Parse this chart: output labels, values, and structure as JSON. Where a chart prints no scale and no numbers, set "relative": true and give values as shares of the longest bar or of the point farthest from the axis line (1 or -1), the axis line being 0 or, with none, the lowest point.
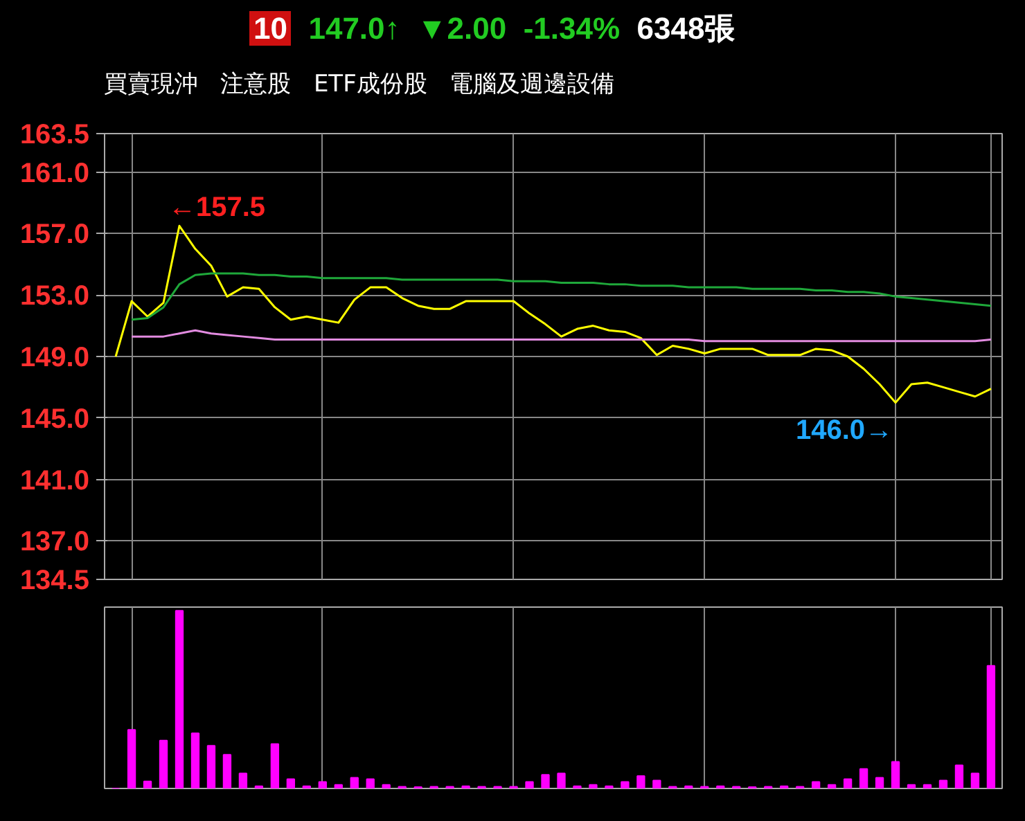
{
  "chart_data": [
    {
      "type": "line",
      "annotations": [
        "10",
        "147.0↑",
        "▼2.00",
        "-1.34%",
        "6348張",
        "買賣現沖",
        "注意股",
        "ETF成份股",
        "電腦及週邊設備",
        "←157.5",
        "146.0→"
      ],
      "categories": [
        null,
        null,
        null,
        null,
        null,
        null,
        null,
        null,
        null,
        null,
        null,
        null,
        null,
        null,
        null,
        null,
        null,
        null,
        null,
        null,
        null,
        null,
        null,
        null,
        null,
        null,
        null,
        null,
        null,
        null,
        null,
        null,
        null,
        null,
        null,
        null,
        null,
        null,
        null,
        null,
        null,
        null,
        null,
        null,
        null,
        null,
        null,
        null,
        null,
        null,
        null,
        null,
        null,
        null,
        null,
        null
      ],
      "ylim": [
        134.5,
        163.5
      ],
      "yticks": [
        {
          "value": 134.5,
          "label": "134.5"
        },
        {
          "value": 137,
          "label": "137.0"
        },
        {
          "value": 141,
          "label": "141.0"
        },
        {
          "value": 145,
          "label": "145.0"
        },
        {
          "value": 149,
          "label": "149.0"
        },
        {
          "value": 153,
          "label": "153.0"
        },
        {
          "value": 157,
          "label": "157.0"
        },
        {
          "value": 161,
          "label": "161.0"
        },
        {
          "value": 163.5,
          "label": "163.5"
        }
      ],
      "tick_labels": "y",
      "grid": true,
      "series": [
        {
          "color": "#ffff00",
          "values": [
            149.0,
            152.6,
            151.6,
            152.5,
            157.5,
            156.0,
            154.9,
            152.9,
            153.5,
            153.4,
            152.2,
            151.4,
            151.6,
            151.4,
            151.2,
            152.7,
            153.5,
            153.5,
            152.8,
            152.3,
            152.1,
            152.1,
            152.6,
            152.6,
            152.6,
            152.6,
            151.8,
            151.1,
            150.3,
            150.8,
            151.0,
            150.7,
            150.6,
            150.2,
            149.1,
            149.7,
            149.5,
            149.2,
            149.5,
            149.5,
            149.5,
            149.1,
            149.1,
            149.1,
            149.5,
            149.4,
            149.0,
            148.2,
            147.2,
            146.0,
            147.2,
            147.3,
            147.0,
            146.7,
            146.4,
            146.9
          ]
        },
        {
          "color": "#1fa83a",
          "values": [
            null,
            151.4,
            151.5,
            152.2,
            153.7,
            154.3,
            154.4,
            154.4,
            154.4,
            154.3,
            154.3,
            154.2,
            154.2,
            154.1,
            154.1,
            154.1,
            154.1,
            154.1,
            154.0,
            154.0,
            154.0,
            154.0,
            154.0,
            154.0,
            154.0,
            153.9,
            153.9,
            153.9,
            153.8,
            153.8,
            153.8,
            153.7,
            153.7,
            153.6,
            153.6,
            153.6,
            153.5,
            153.5,
            153.5,
            153.5,
            153.4,
            153.4,
            153.4,
            153.4,
            153.3,
            153.3,
            153.2,
            153.2,
            153.1,
            152.9,
            152.8,
            152.7,
            152.6,
            152.5,
            152.4,
            152.3
          ]
        },
        {
          "color": "#e28be0",
          "values": [
            null,
            150.3,
            150.3,
            150.3,
            150.5,
            150.7,
            150.5,
            150.4,
            150.3,
            150.2,
            150.1,
            150.1,
            150.1,
            150.1,
            150.1,
            150.1,
            150.1,
            150.1,
            150.1,
            150.1,
            150.1,
            150.1,
            150.1,
            150.1,
            150.1,
            150.1,
            150.1,
            150.1,
            150.1,
            150.1,
            150.1,
            150.1,
            150.1,
            150.1,
            150.1,
            150.1,
            150.1,
            150.0,
            150.0,
            150.0,
            150.0,
            150.0,
            150.0,
            150.0,
            150.0,
            150.0,
            150.0,
            150.0,
            150.0,
            150.0,
            150.0,
            150.0,
            150.0,
            150.0,
            150.0,
            150.1
          ]
        }
      ]
    },
    {
      "type": "bar",
      "relative": true,
      "color": "#ff00ff",
      "tick_labels": false,
      "grid": "x",
      "categories": [
        null,
        null,
        null,
        null,
        null,
        null,
        null,
        null,
        null,
        null,
        null,
        null,
        null,
        null,
        null,
        null,
        null,
        null,
        null,
        null,
        null,
        null,
        null,
        null,
        null,
        null,
        null,
        null,
        null,
        null,
        null,
        null,
        null,
        null,
        null,
        null,
        null,
        null,
        null,
        null,
        null,
        null,
        null,
        null,
        null,
        null,
        null,
        null,
        null,
        null,
        null,
        null,
        null,
        null,
        null,
        null
      ],
      "values": [
        0,
        0.33,
        0.04,
        0.27,
        1.0,
        0.31,
        0.24,
        0.19,
        0.085,
        0.013,
        0.25,
        0.053,
        0.013,
        0.037,
        0.02,
        0.06,
        0.053,
        0.02,
        0.01,
        0.008,
        0.01,
        0.01,
        0.013,
        0.01,
        0.01,
        0.01,
        0.037,
        0.077,
        0.085,
        0.013,
        0.02,
        0.013,
        0.037,
        0.07,
        0.045,
        0.01,
        0.013,
        0.01,
        0.013,
        0.01,
        0.008,
        0.01,
        0.013,
        0.01,
        0.037,
        0.02,
        0.053,
        0.11,
        0.06,
        0.15,
        0.02,
        0.02,
        0.045,
        0.13,
        0.085,
        0.69
      ]
    }
  ]
}
